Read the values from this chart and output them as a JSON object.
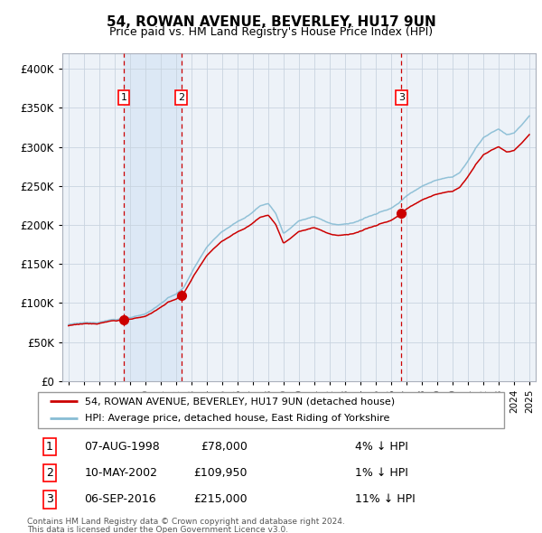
{
  "title": "54, ROWAN AVENUE, BEVERLEY, HU17 9UN",
  "subtitle": "Price paid vs. HM Land Registry's House Price Index (HPI)",
  "legend_line1": "54, ROWAN AVENUE, BEVERLEY, HU17 9UN (detached house)",
  "legend_line2": "HPI: Average price, detached house, East Riding of Yorkshire",
  "transactions": [
    {
      "num": 1,
      "date": "07-AUG-1998",
      "price": 78000,
      "price_str": "£78,000",
      "pct": "4%",
      "dir": "↓",
      "year_x": 1998.6
    },
    {
      "num": 2,
      "date": "10-MAY-2002",
      "price": 109950,
      "price_str": "£109,950",
      "pct": "1%",
      "dir": "↓",
      "year_x": 2002.35
    },
    {
      "num": 3,
      "date": "06-SEP-2016",
      "price": 215000,
      "price_str": "£215,000",
      "pct": "11%",
      "dir": "↓",
      "year_x": 2016.67
    }
  ],
  "footer1": "Contains HM Land Registry data © Crown copyright and database right 2024.",
  "footer2": "This data is licensed under the Open Government Licence v3.0.",
  "hpi_color": "#87bcd4",
  "price_color": "#cc0000",
  "marker_color": "#cc0000",
  "vline_color": "#cc0000",
  "shade_color": "#dce8f5",
  "grid_color": "#c8d4e0",
  "bg_color": "#edf2f8",
  "ylim": [
    0,
    420000
  ],
  "yticks": [
    0,
    50000,
    100000,
    150000,
    200000,
    250000,
    300000,
    350000,
    400000
  ],
  "xlim_start": 1994.6,
  "xlim_end": 2025.4,
  "hpi_anchors_t": [
    1995.0,
    1996.0,
    1997.0,
    1997.5,
    1998.0,
    1998.5,
    1999.0,
    1999.5,
    2000.0,
    2000.5,
    2001.0,
    2001.5,
    2002.0,
    2002.5,
    2003.0,
    2003.5,
    2004.0,
    2004.5,
    2005.0,
    2005.5,
    2006.0,
    2006.5,
    2007.0,
    2007.5,
    2008.0,
    2008.5,
    2009.0,
    2009.5,
    2010.0,
    2010.5,
    2011.0,
    2011.5,
    2012.0,
    2012.5,
    2013.0,
    2013.5,
    2014.0,
    2014.5,
    2015.0,
    2015.5,
    2016.0,
    2016.5,
    2017.0,
    2017.5,
    2018.0,
    2018.5,
    2019.0,
    2019.5,
    2020.0,
    2020.5,
    2021.0,
    2021.5,
    2022.0,
    2022.5,
    2023.0,
    2023.5,
    2024.0,
    2024.5,
    2025.0
  ],
  "hpi_anchors_v": [
    72000,
    74500,
    76500,
    77500,
    79000,
    80000,
    81000,
    82500,
    86000,
    92000,
    100000,
    107000,
    111000,
    120000,
    138000,
    155000,
    172000,
    182000,
    192000,
    198000,
    204000,
    210000,
    217000,
    225000,
    228000,
    215000,
    190000,
    197000,
    205000,
    208000,
    210000,
    207000,
    202000,
    200000,
    201000,
    203000,
    206000,
    210000,
    213000,
    218000,
    222000,
    228000,
    237000,
    244000,
    250000,
    254000,
    258000,
    260000,
    261000,
    268000,
    282000,
    298000,
    312000,
    318000,
    322000,
    316000,
    318000,
    328000,
    340000
  ]
}
